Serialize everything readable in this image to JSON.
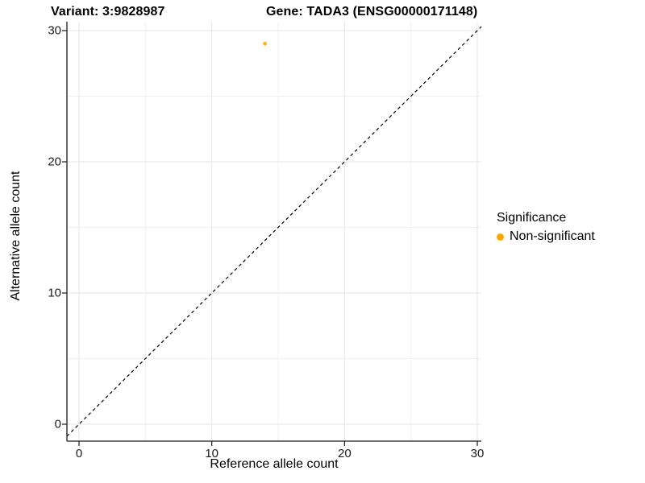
{
  "chart_data": {
    "type": "scatter",
    "title_left": "Variant: 3:9828987",
    "title_right": "Gene: TADA3 (ENSG00000171148)",
    "xlabel": "Reference allele count",
    "ylabel": "Alternative allele count",
    "x_ticks": [
      0,
      10,
      20,
      30
    ],
    "y_ticks": [
      0,
      10,
      20,
      30
    ],
    "x_minor_ticks": [
      5,
      15,
      25
    ],
    "y_minor_ticks": [
      5,
      15,
      25
    ],
    "xlim": [
      -0.91,
      30.3
    ],
    "ylim": [
      -1.29,
      30.67
    ],
    "grid": true,
    "points": [
      {
        "x": 14,
        "y": 29,
        "series": "Non-significant"
      }
    ],
    "reference_line": {
      "slope": 1,
      "intercept": 0,
      "style": "dashed",
      "color": "#000000"
    },
    "legend": {
      "position": "right",
      "title": "Significance",
      "items": [
        {
          "label": "Non-significant",
          "color": "#FFA500"
        }
      ]
    },
    "colors": {
      "point": "#FFA500",
      "background": "#FFFFFF"
    }
  }
}
